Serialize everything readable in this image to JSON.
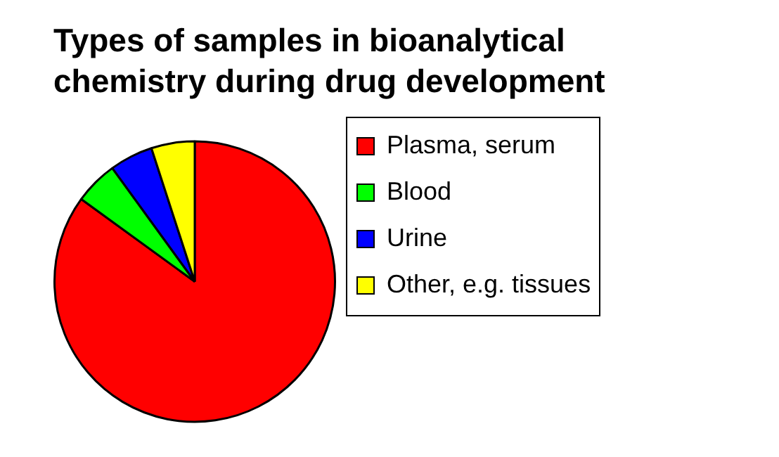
{
  "chart_data": {
    "type": "pie",
    "title": "Types of samples in bioanalytical chemistry during drug development",
    "categories": [
      "Plasma, serum",
      "Blood",
      "Urine",
      "Other, e.g. tissues"
    ],
    "values": [
      85,
      5,
      5,
      5
    ],
    "colors": [
      "#ff0000",
      "#00ff00",
      "#0000ff",
      "#ffff00"
    ],
    "legend": "right"
  }
}
